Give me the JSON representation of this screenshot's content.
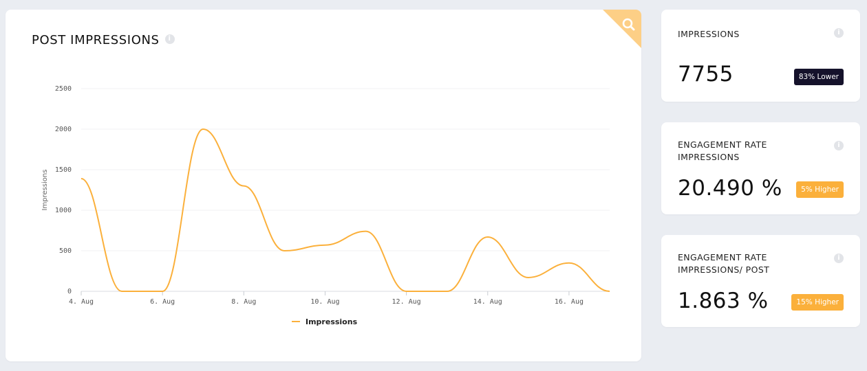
{
  "main": {
    "title": "POST IMPRESSIONS",
    "search_icon": "search-icon",
    "info_icon": "info-icon"
  },
  "chart_data": {
    "type": "line",
    "title": "POST IMPRESSIONS",
    "xlabel": "",
    "ylabel": "Impressions",
    "ylim": [
      0,
      2500
    ],
    "yticks": [
      0,
      500,
      1000,
      1500,
      2000,
      2500
    ],
    "xtick_labels": [
      "4. Aug",
      "6. Aug",
      "8. Aug",
      "10. Aug",
      "12. Aug",
      "14. Aug",
      "16. Aug"
    ],
    "x": [
      "4. Aug",
      "5. Aug",
      "6. Aug",
      "7. Aug",
      "8. Aug",
      "9. Aug",
      "10. Aug",
      "11. Aug",
      "12. Aug",
      "13. Aug",
      "14. Aug",
      "15. Aug",
      "16. Aug",
      "17. Aug"
    ],
    "series": [
      {
        "name": "Impressions",
        "color": "#fbb03b",
        "values": [
          1390,
          0,
          0,
          2000,
          1300,
          500,
          570,
          740,
          0,
          0,
          670,
          170,
          350,
          0
        ]
      }
    ],
    "grid": true,
    "legend": "bottom-center"
  },
  "stats": [
    {
      "title": "IMPRESSIONS",
      "value": "7755",
      "badge": "83% Lower",
      "badge_color": "#15122b"
    },
    {
      "title": "ENGAGEMENT RATE IMPRESSIONS",
      "value": "20.490 %",
      "badge": "5% Higher",
      "badge_color": "#fbb03b"
    },
    {
      "title": "ENGAGEMENT RATE IMPRESSIONS/ POST",
      "value": "1.863 %",
      "badge": "15% Higher",
      "badge_color": "#fbb03b"
    }
  ]
}
